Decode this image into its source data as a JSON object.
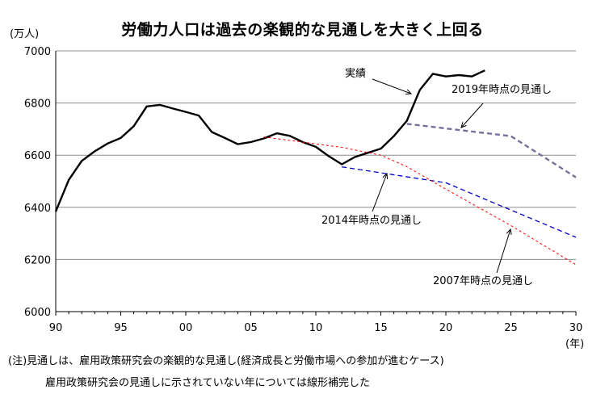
{
  "chart_data": {
    "type": "line",
    "title": "労働力人口は過去の楽観的な見通しを大きく上回る",
    "ylabel": "(万人)",
    "xlabel": "(年)",
    "xlim": [
      1990,
      2030
    ],
    "ylim": [
      6000,
      7000
    ],
    "yticks": [
      6000,
      6200,
      6400,
      6600,
      6800,
      7000
    ],
    "xticks": [
      {
        "value": 1990,
        "label": "90"
      },
      {
        "value": 1995,
        "label": "95"
      },
      {
        "value": 2000,
        "label": "00"
      },
      {
        "value": 2005,
        "label": "05"
      },
      {
        "value": 2010,
        "label": "10"
      },
      {
        "value": 2015,
        "label": "15"
      },
      {
        "value": 2020,
        "label": "20"
      },
      {
        "value": 2025,
        "label": "25"
      },
      {
        "value": 2030,
        "label": "30"
      }
    ],
    "grid": "horizontal",
    "series": [
      {
        "name": "実績",
        "color": "#000000",
        "style": "solid",
        "x": [
          1990,
          1991,
          1992,
          1993,
          1994,
          1995,
          1996,
          1997,
          1998,
          1999,
          2000,
          2001,
          2002,
          2003,
          2004,
          2005,
          2006,
          2007,
          2008,
          2009,
          2010,
          2011,
          2012,
          2013,
          2014,
          2015,
          2016,
          2017,
          2018,
          2019,
          2020,
          2021,
          2022,
          2023
        ],
        "y": [
          6384,
          6505,
          6578,
          6615,
          6645,
          6666,
          6711,
          6787,
          6793,
          6779,
          6766,
          6752,
          6689,
          6666,
          6642,
          6650,
          6664,
          6684,
          6674,
          6650,
          6632,
          6596,
          6565,
          6593,
          6609,
          6625,
          6673,
          6732,
          6850,
          6912,
          6902,
          6907,
          6902,
          6925
        ]
      },
      {
        "name": "2019年時点の見通し",
        "color": "#7a6f9b",
        "style": "dashed",
        "x": [
          2017,
          2025,
          2030
        ],
        "y": [
          6720,
          6673,
          6515
        ]
      },
      {
        "name": "2014年時点の見通し",
        "color": "#0000cc",
        "style": "dashed",
        "x": [
          2012,
          2020,
          2030
        ],
        "y": [
          6555,
          6494,
          6285
        ]
      },
      {
        "name": "2007年時点の見通し",
        "color": "#ff0000",
        "style": "dotted",
        "x": [
          2006,
          2012,
          2015,
          2017,
          2020,
          2025,
          2030
        ],
        "y": [
          6670,
          6630,
          6600,
          6556,
          6470,
          6330,
          6180
        ]
      }
    ],
    "annotations": [
      {
        "text": "実績",
        "series": 0
      },
      {
        "text": "2019年時点の見通し",
        "series": 1
      },
      {
        "text": "2014年時点の見通し",
        "series": 2
      },
      {
        "text": "2007年時点の見通し",
        "series": 3
      }
    ]
  },
  "notes": [
    "(注)見通しは、雇用政策研究会の楽観的な見通し(経済成長と労働市場への参加が進むケース)",
    "雇用政策研究会の見通しに示されていない年については線形補完した"
  ]
}
